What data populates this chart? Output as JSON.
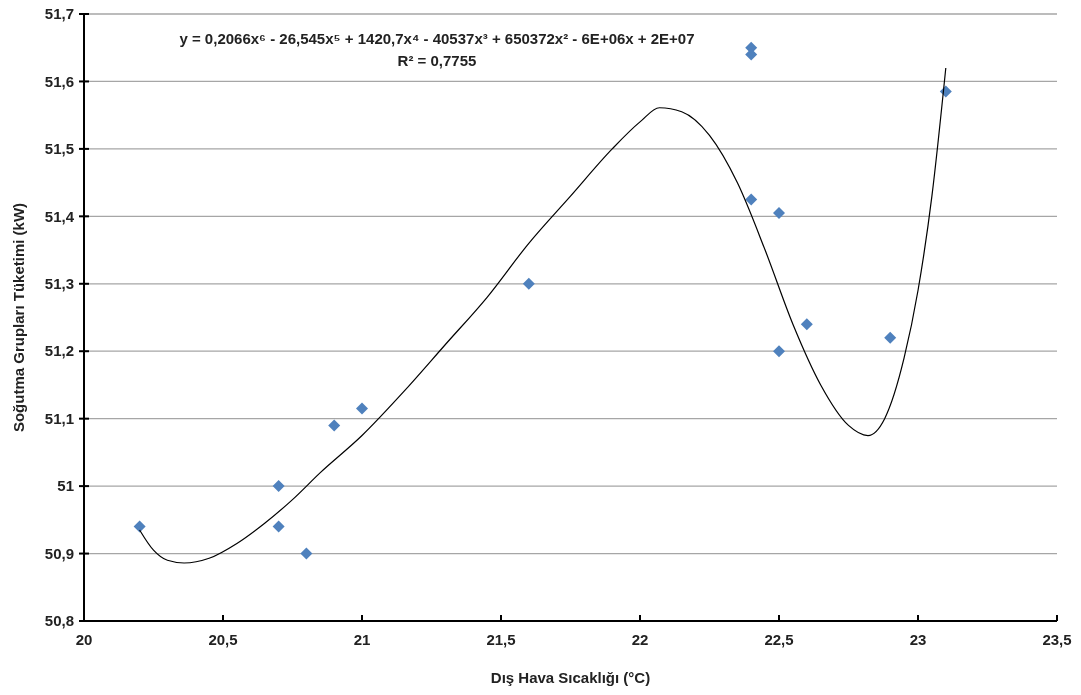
{
  "chart_data": {
    "type": "scatter",
    "xlabel": "Dış Hava Sıcaklığı (°C)",
    "ylabel": "Soğutma Grupları Tüketimi (kW)",
    "annotations": [
      "y = 0,2066x⁶ - 26,545x⁵ + 1420,7x⁴ - 40537x³ + 650372x² - 6E+06x + 2E+07",
      "R² = 0,7755"
    ],
    "xlim": [
      20,
      23.5
    ],
    "xticks": [
      20,
      {
        "value": 20.5,
        "label": "20,5"
      },
      21,
      {
        "value": 21.5,
        "label": "21,5"
      },
      22,
      {
        "value": 22.5,
        "label": "22,5"
      },
      23,
      {
        "value": 23.5,
        "label": "23,5"
      }
    ],
    "ylim": [
      50.8,
      51.7
    ],
    "yticks": [
      {
        "value": 50.8,
        "label": "50,8"
      },
      {
        "value": 50.9,
        "label": "50,9"
      },
      51,
      {
        "value": 51.1,
        "label": "51,1"
      },
      {
        "value": 51.2,
        "label": "51,2"
      },
      {
        "value": 51.3,
        "label": "51,3"
      },
      {
        "value": 51.4,
        "label": "51,4"
      },
      {
        "value": 51.5,
        "label": "51,5"
      },
      {
        "value": 51.6,
        "label": "51,6"
      },
      {
        "value": 51.7,
        "label": "51,7"
      }
    ],
    "grid": "y",
    "marker": "diamond",
    "series": [
      {
        "color": "#4f81bd",
        "x": [
          20.2,
          20.7,
          20.7,
          20.8,
          20.9,
          21.0,
          21.6,
          22.4,
          22.4,
          22.4,
          22.5,
          22.6,
          22.5,
          22.9,
          23.1
        ],
        "values": [
          50.94,
          51.0,
          50.94,
          50.9,
          51.09,
          51.115,
          51.3,
          51.65,
          51.64,
          51.425,
          51.405,
          51.24,
          51.2,
          51.22,
          51.585
        ]
      },
      {
        "type": "line",
        "color": "#000000",
        "marker": "none",
        "x": [
          20.2,
          20.25,
          20.3,
          20.36,
          20.45,
          20.55,
          20.65,
          20.75,
          20.85,
          21.0,
          21.15,
          21.3,
          21.45,
          21.6,
          21.75,
          21.9,
          22.0,
          22.07,
          22.15,
          22.25,
          22.35,
          22.45,
          22.55,
          22.65,
          22.75,
          22.82,
          22.88,
          22.95,
          23.0,
          23.05,
          23.1
        ],
        "values": [
          50.935,
          50.905,
          50.89,
          50.886,
          50.893,
          50.915,
          50.945,
          50.98,
          51.02,
          51.075,
          51.14,
          51.21,
          51.28,
          51.36,
          51.43,
          51.5,
          51.54,
          51.561,
          51.555,
          51.52,
          51.45,
          51.35,
          51.24,
          51.15,
          51.09,
          51.075,
          51.1,
          51.19,
          51.29,
          51.43,
          51.62
        ]
      }
    ]
  }
}
